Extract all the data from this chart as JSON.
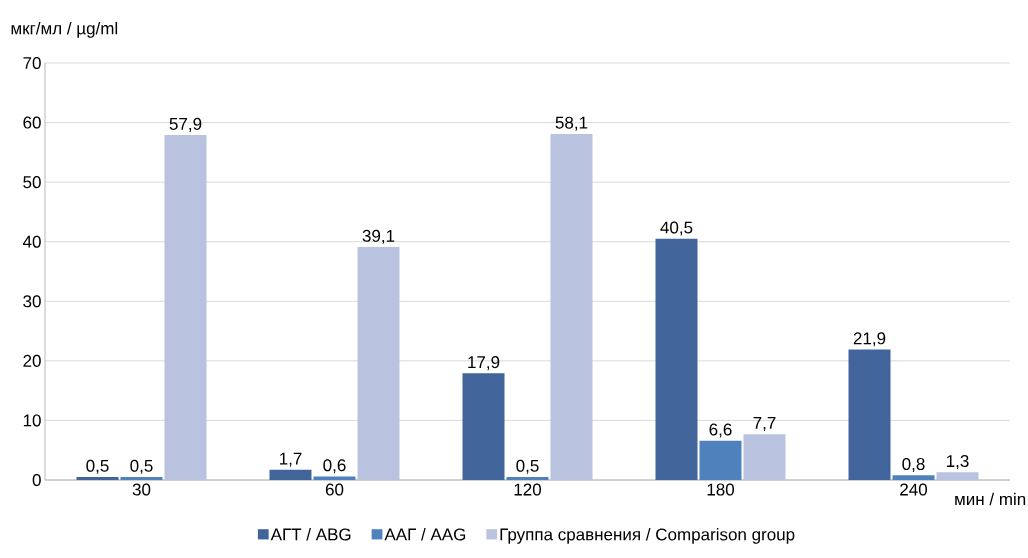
{
  "chart_data": {
    "type": "bar",
    "ylabel": "мкг/мл / µg/ml",
    "xlabel": "мин / min",
    "categories": [
      "30",
      "60",
      "120",
      "180",
      "240"
    ],
    "series": [
      {
        "name": "АГТ / ABG",
        "color": "#41659a",
        "values": [
          0.5,
          1.7,
          17.9,
          40.5,
          21.9
        ],
        "value_labels": [
          "0,5",
          "1,7",
          "17,9",
          "40,5",
          "21,9"
        ]
      },
      {
        "name": "ААГ / AAG",
        "color": "#4f81bd",
        "values": [
          0.5,
          0.6,
          0.5,
          6.6,
          0.8
        ],
        "value_labels": [
          "0,5",
          "0,6",
          "0,5",
          "6,6",
          "0,8"
        ]
      },
      {
        "name": "Группа сравнения / Comparison group",
        "color": "#b9c3df",
        "values": [
          57.9,
          39.1,
          58.1,
          7.7,
          1.3
        ],
        "value_labels": [
          "57,9",
          "39,1",
          "58,1",
          "7,7",
          "1,3"
        ]
      }
    ],
    "ylim": [
      0,
      70
    ],
    "yticks": [
      0,
      10,
      20,
      30,
      40,
      50,
      60,
      70
    ],
    "grid": "y",
    "legend": "bottom"
  }
}
